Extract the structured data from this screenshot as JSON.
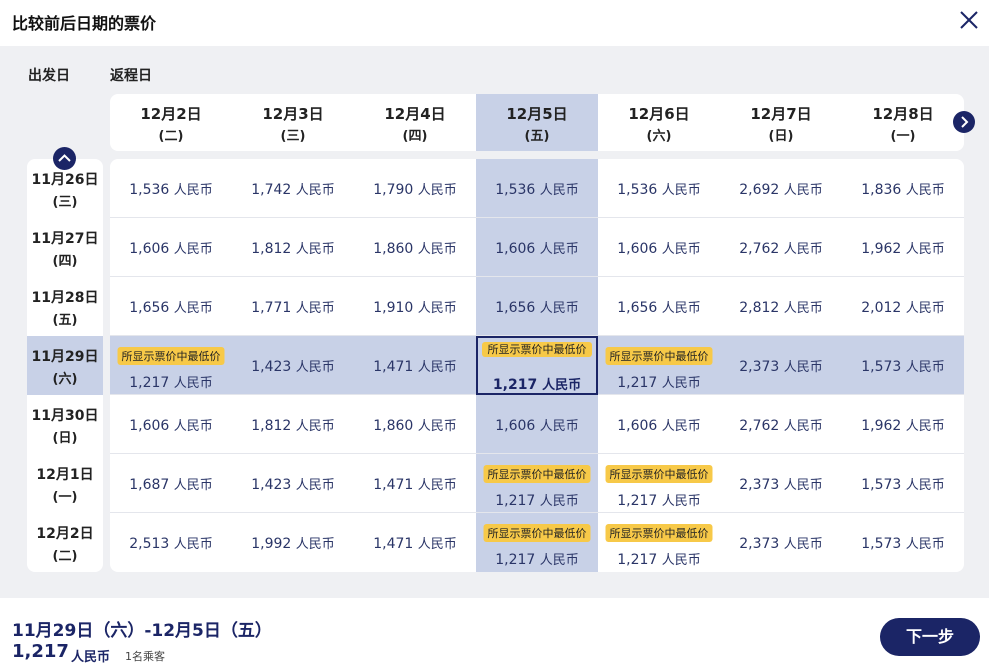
{
  "title": "比较前后日期的票价",
  "labels": {
    "departure": "出发日",
    "return": "返程日"
  },
  "columns": [
    {
      "date": "12月2日",
      "weekday": "(二)"
    },
    {
      "date": "12月3日",
      "weekday": "(三)"
    },
    {
      "date": "12月4日",
      "weekday": "(四)"
    },
    {
      "date": "12月5日",
      "weekday": "(五)"
    },
    {
      "date": "12月6日",
      "weekday": "(六)"
    },
    {
      "date": "12月7日",
      "weekday": "(日)"
    },
    {
      "date": "12月8日",
      "weekday": "(一)"
    }
  ],
  "rows": [
    {
      "date": "11月26日",
      "weekday": "(三)"
    },
    {
      "date": "11月27日",
      "weekday": "(四)"
    },
    {
      "date": "11月28日",
      "weekday": "(五)"
    },
    {
      "date": "11月29日",
      "weekday": "(六)"
    },
    {
      "date": "11月30日",
      "weekday": "(日)"
    },
    {
      "date": "12月1日",
      "weekday": "(一)"
    },
    {
      "date": "12月2日",
      "weekday": "(二)"
    }
  ],
  "unit": "人民币",
  "badge_text": "所显示票价中最低价",
  "prices": [
    [
      "1,536",
      "1,742",
      "1,790",
      "1,536",
      "1,536",
      "2,692",
      "1,836"
    ],
    [
      "1,606",
      "1,812",
      "1,860",
      "1,606",
      "1,606",
      "2,762",
      "1,962"
    ],
    [
      "1,656",
      "1,771",
      "1,910",
      "1,656",
      "1,656",
      "2,812",
      "2,012"
    ],
    [
      "1,217",
      "1,423",
      "1,471",
      "1,217",
      "1,217",
      "2,373",
      "1,573"
    ],
    [
      "1,606",
      "1,812",
      "1,860",
      "1,606",
      "1,606",
      "2,762",
      "1,962"
    ],
    [
      "1,687",
      "1,423",
      "1,471",
      "1,217",
      "1,217",
      "2,373",
      "1,573"
    ],
    [
      "2,513",
      "1,992",
      "1,471",
      "1,217",
      "1,217",
      "2,373",
      "1,573"
    ]
  ],
  "footer": {
    "dates": "11月29日（六）-12月5日（五）",
    "price": "1,217",
    "unit": "人民币",
    "passengers": "1名乘客",
    "next": "下一步"
  },
  "colors": {
    "primary": "#1b2566",
    "highlight": "#c8d1e7",
    "badge": "#f7c948",
    "background": "#eff0f3"
  },
  "icons": {
    "close": "close-icon",
    "next_dates": "chevron-right-icon",
    "prev_dates": "chevron-up-icon"
  }
}
